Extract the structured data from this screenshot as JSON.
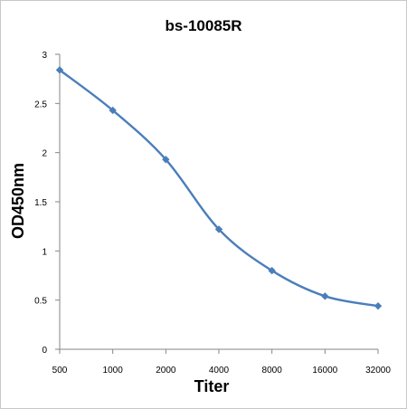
{
  "chart_data": {
    "type": "line",
    "title": "bs-10085R",
    "xlabel": "Titer",
    "ylabel": "OD450nm",
    "categories": [
      "500",
      "1000",
      "2000",
      "4000",
      "8000",
      "16000",
      "32000"
    ],
    "series": [
      {
        "values": [
          2.84,
          2.43,
          1.93,
          1.22,
          0.8,
          0.54,
          0.44
        ]
      }
    ],
    "ylim": [
      0,
      3
    ],
    "yticks": [
      "0",
      "0.5",
      "1",
      "1.5",
      "2",
      "2.5",
      "3"
    ],
    "grid": false,
    "legend": "none",
    "line_color": "#4a7ebb",
    "smooth": true
  }
}
